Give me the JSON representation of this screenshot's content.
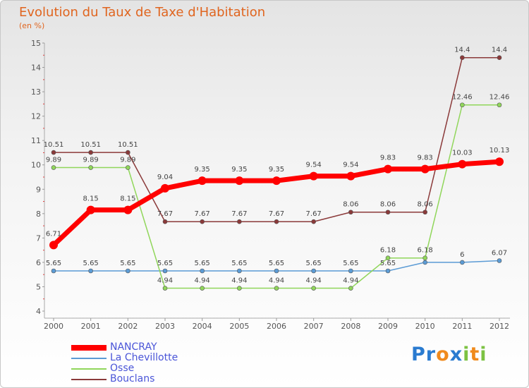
{
  "header": {
    "title": "Evolution du Taux de Taxe d'Habitation",
    "subtitle": "(en %)"
  },
  "logo": {
    "text": "Proxiti",
    "letters": [
      "P",
      "r",
      "o",
      "x",
      "i",
      "t",
      "i"
    ],
    "colors": [
      "#2a7bd0",
      "#2a7bd0",
      "#f08a1c",
      "#2a7bd0",
      "#7cc242",
      "#f08a1c",
      "#7cc242"
    ]
  },
  "chart_data": {
    "type": "line",
    "title": "Evolution du Taux de Taxe d'Habitation",
    "ylabel": "(en %)",
    "x": [
      "2000",
      "2001",
      "2002",
      "2003",
      "2004",
      "2005",
      "2006",
      "2007",
      "2008",
      "2009",
      "2010",
      "2011",
      "2012"
    ],
    "yticks": [
      "4",
      "5",
      "6",
      "7",
      "8",
      "9",
      "10",
      "11",
      "12",
      "13",
      "14",
      "15"
    ],
    "ylim": [
      4,
      15
    ],
    "grid": false,
    "legend_position": "bottom-left",
    "series": [
      {
        "name": "NANCRAY",
        "color": "#ff0000",
        "values": [
          6.71,
          8.15,
          8.15,
          9.04,
          9.35,
          9.35,
          9.35,
          9.54,
          9.54,
          9.83,
          9.83,
          10.03,
          10.13
        ],
        "labels": [
          "6.71",
          "8.15",
          "8.15",
          "9.04",
          "9.35",
          "9.35",
          "9.35",
          "9.54",
          "9.54",
          "9.83",
          "9.83",
          "10.03",
          "10.13"
        ]
      },
      {
        "name": "La Chevillotte",
        "color": "#5b9bd5",
        "values": [
          5.65,
          5.65,
          5.65,
          5.65,
          5.65,
          5.65,
          5.65,
          5.65,
          5.65,
          5.65,
          6,
          6,
          6.07
        ],
        "labels": [
          "5.65",
          "5.65",
          "5.65",
          "5.65",
          "5.65",
          "5.65",
          "5.65",
          "5.65",
          "5.65",
          "5.65",
          "",
          "6",
          "6.07"
        ]
      },
      {
        "name": "Osse",
        "color": "#90d65a",
        "values": [
          9.89,
          9.89,
          9.89,
          4.94,
          4.94,
          4.94,
          4.94,
          4.94,
          4.94,
          6.18,
          6.18,
          12.46,
          12.46
        ],
        "labels": [
          "9.89",
          "9.89",
          "9.89",
          "4.94",
          "4.94",
          "4.94",
          "4.94",
          "4.94",
          "4.94",
          "6.18",
          "6.18",
          "12.46",
          "12.46"
        ]
      },
      {
        "name": "Bouclans",
        "color": "#8b3a3a",
        "values": [
          10.51,
          10.51,
          10.51,
          7.67,
          7.67,
          7.67,
          7.67,
          7.67,
          8.06,
          8.06,
          8.06,
          14.4,
          14.4
        ],
        "labels": [
          "10.51",
          "10.51",
          "10.51",
          "7.67",
          "7.67",
          "7.67",
          "7.67",
          "7.67",
          "8.06",
          "8.06",
          "8.06",
          "14.4",
          "14.4"
        ]
      }
    ]
  }
}
